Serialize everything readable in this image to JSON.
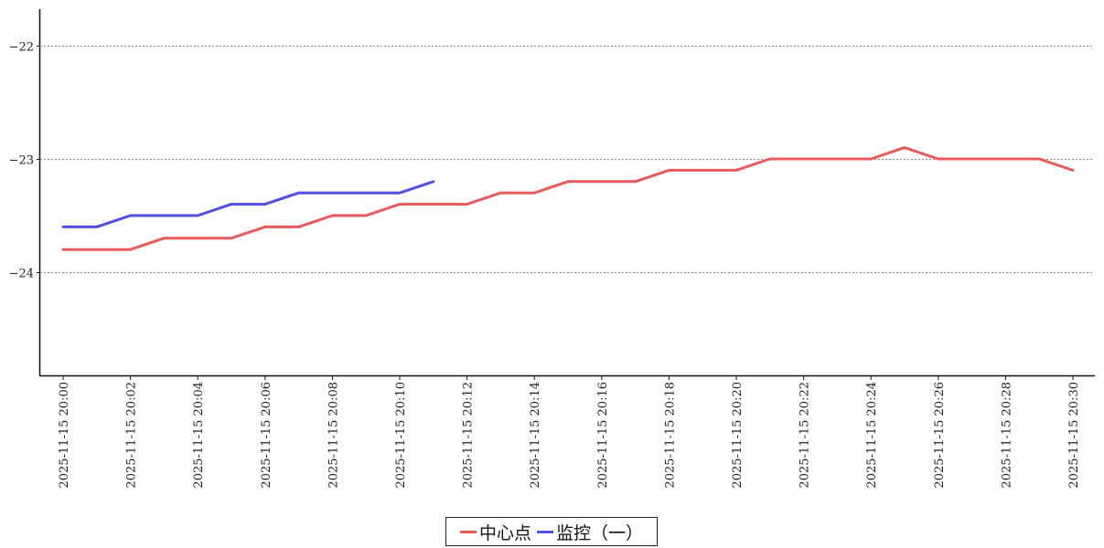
{
  "chart_data": {
    "type": "line",
    "x": [
      "2025-11-15 20:00",
      "2025-11-15 20:01",
      "2025-11-15 20:02",
      "2025-11-15 20:03",
      "2025-11-15 20:04",
      "2025-11-15 20:05",
      "2025-11-15 20:06",
      "2025-11-15 20:07",
      "2025-11-15 20:08",
      "2025-11-15 20:09",
      "2025-11-15 20:10",
      "2025-11-15 20:11",
      "2025-11-15 20:12",
      "2025-11-15 20:13",
      "2025-11-15 20:14",
      "2025-11-15 20:15",
      "2025-11-15 20:16",
      "2025-11-15 20:17",
      "2025-11-15 20:18",
      "2025-11-15 20:19",
      "2025-11-15 20:20",
      "2025-11-15 20:21",
      "2025-11-15 20:22",
      "2025-11-15 20:23",
      "2025-11-15 20:24",
      "2025-11-15 20:25",
      "2025-11-15 20:26",
      "2025-11-15 20:27",
      "2025-11-15 20:28",
      "2025-11-15 20:29",
      "2025-11-15 20:30"
    ],
    "xtick_labels": [
      "2025-11-15 20:00",
      "2025-11-15 20:02",
      "2025-11-15 20:04",
      "2025-11-15 20:06",
      "2025-11-15 20:08",
      "2025-11-15 20:10",
      "2025-11-15 20:12",
      "2025-11-15 20:14",
      "2025-11-15 20:16",
      "2025-11-15 20:18",
      "2025-11-15 20:20",
      "2025-11-15 20:22",
      "2025-11-15 20:24",
      "2025-11-15 20:26",
      "2025-11-15 20:28",
      "2025-11-15 20:30"
    ],
    "series": [
      {
        "name": "中心点",
        "color": "#eb5a5a",
        "values": [
          -23.8,
          -23.8,
          -23.8,
          -23.7,
          -23.7,
          -23.7,
          -23.6,
          -23.6,
          -23.5,
          -23.5,
          -23.4,
          -23.4,
          -23.4,
          -23.3,
          -23.3,
          -23.2,
          -23.2,
          -23.2,
          -23.1,
          -23.1,
          -23.1,
          -23.0,
          -23.0,
          -23.0,
          -23.0,
          -22.9,
          -23.0,
          -23.0,
          -23.0,
          -23.0,
          -23.1
        ]
      },
      {
        "name": "监控（一）",
        "color": "#5050e6",
        "values": [
          -23.6,
          -23.6,
          -23.5,
          -23.5,
          -23.5,
          -23.4,
          -23.4,
          -23.3,
          -23.3,
          -23.3,
          -23.3,
          -23.2,
          null,
          null,
          null,
          null,
          null,
          null,
          null,
          null,
          null,
          null,
          null,
          null,
          null,
          null,
          null,
          null,
          null,
          null,
          null
        ]
      }
    ],
    "yticks": [
      -22,
      -23,
      -24
    ],
    "ytick_labels": [
      "−22",
      "−23",
      "−24"
    ],
    "ylim": [
      -24.9,
      -21.7
    ],
    "title": "",
    "xlabel": "",
    "ylabel": "",
    "grid": "horizontal dotted",
    "legend": "bottom-center"
  }
}
